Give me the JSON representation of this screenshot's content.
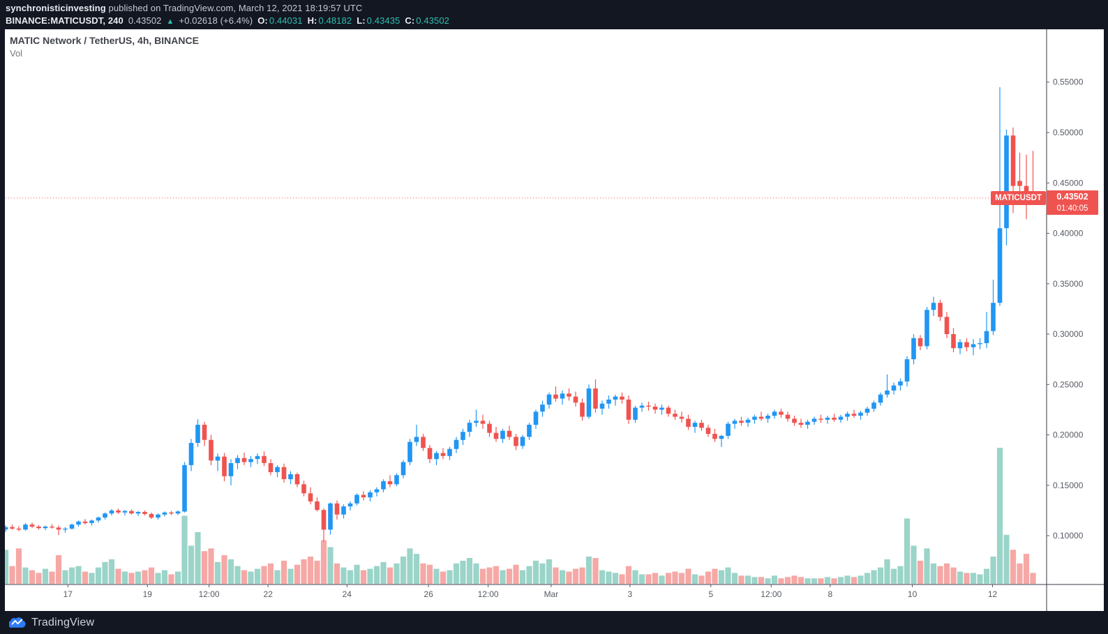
{
  "header": {
    "line1": {
      "username": "synchronisticinvesting",
      "rest": "published on TradingView.com, March 12, 2021 18:19:57 UTC"
    },
    "line2": {
      "symbol": "BINANCE:MATICUSDT, 240",
      "last_price": "0.43502",
      "direction_arrow": "▲",
      "change": "+0.02618 (+6.4%)",
      "open_label": "O:",
      "open": "0.44031",
      "high_label": "H:",
      "high": "0.48182",
      "low_label": "L:",
      "low": "0.43435",
      "close_label": "C:",
      "close": "0.43502"
    }
  },
  "legend": {
    "title": "MATIC Network / TetherUS, 4h, BINANCE",
    "indicator": "Vol"
  },
  "price_line": {
    "symbol_label": "MATICUSDT",
    "price": "0.43502",
    "countdown": "01:40:05"
  },
  "footer": {
    "brand": "TradingView"
  },
  "colors": {
    "background_dark": "#131722",
    "chart_background": "#ffffff",
    "candle_up": "#2196f3",
    "candle_down": "#ef5350",
    "volume_up": "#9bd4c9",
    "volume_down": "#f5a8a5",
    "price_line_red": "#ef5350",
    "badge_red": "#ef5350",
    "teal_text": "#2ebdb0",
    "axis_text": "#565a62",
    "axis_line": "#363a45",
    "logo_blue": "#2f7bf5"
  },
  "chart_data": {
    "type": "candlestick",
    "title": "MATIC Network / TetherUS, 4h, BINANCE",
    "symbol": "BINANCE:MATICUSDT",
    "interval": "4h",
    "exchange": "BINANCE",
    "legend": [
      "Vol"
    ],
    "grid": false,
    "x_axis_note": "Feb 16 - Mar 12, 2021, 4-hour bars",
    "ylim_visible": [
      0.052,
      0.602
    ],
    "current_price": 0.43502,
    "current_bar_ohlc": {
      "open": 0.44031,
      "high": 0.48182,
      "low": 0.43435,
      "close": 0.43502
    },
    "price_axis_ticks": [
      {
        "value": 0.55,
        "label": "0.55000"
      },
      {
        "value": 0.5,
        "label": "0.50000"
      },
      {
        "value": 0.45,
        "label": "0.45000"
      },
      {
        "value": 0.4,
        "label": "0.40000"
      },
      {
        "value": 0.35,
        "label": "0.35000"
      },
      {
        "value": 0.3,
        "label": "0.30000"
      },
      {
        "value": 0.25,
        "label": "0.25000"
      },
      {
        "value": 0.2,
        "label": "0.20000"
      },
      {
        "value": 0.15,
        "label": "0.15000"
      },
      {
        "value": 0.1,
        "label": "0.10000"
      }
    ],
    "time_axis_ticks": [
      {
        "i": 9.4,
        "label": "17"
      },
      {
        "i": 21.4,
        "label": "19"
      },
      {
        "i": 30.7,
        "label": "12:00"
      },
      {
        "i": 39.6,
        "label": "22"
      },
      {
        "i": 51.5,
        "label": "24"
      },
      {
        "i": 63.8,
        "label": "26"
      },
      {
        "i": 72.8,
        "label": "12:00"
      },
      {
        "i": 82.3,
        "label": "Mar"
      },
      {
        "i": 94.2,
        "label": "3"
      },
      {
        "i": 106.4,
        "label": "5"
      },
      {
        "i": 115.5,
        "label": "12:00"
      },
      {
        "i": 124.4,
        "label": "8"
      },
      {
        "i": 136.8,
        "label": "10"
      },
      {
        "i": 148.9,
        "label": "12"
      }
    ],
    "candle_format": [
      "open",
      "high",
      "low",
      "close",
      "volume_rel"
    ],
    "candles": [
      [
        0.106,
        0.11,
        0.1035,
        0.1085,
        0.25
      ],
      [
        0.1085,
        0.111,
        0.106,
        0.107,
        0.13
      ],
      [
        0.107,
        0.1095,
        0.1045,
        0.106,
        0.26
      ],
      [
        0.106,
        0.1125,
        0.105,
        0.111,
        0.12
      ],
      [
        0.111,
        0.113,
        0.1075,
        0.109,
        0.1
      ],
      [
        0.109,
        0.1105,
        0.106,
        0.1075,
        0.08
      ],
      [
        0.1075,
        0.11,
        0.1055,
        0.109,
        0.11
      ],
      [
        0.109,
        0.1115,
        0.107,
        0.108,
        0.09
      ],
      [
        0.108,
        0.11,
        0.1005,
        0.106,
        0.21
      ],
      [
        0.106,
        0.1085,
        0.103,
        0.107,
        0.1
      ],
      [
        0.107,
        0.112,
        0.106,
        0.111,
        0.12
      ],
      [
        0.111,
        0.115,
        0.109,
        0.114,
        0.13
      ],
      [
        0.114,
        0.1165,
        0.111,
        0.1125,
        0.09
      ],
      [
        0.1125,
        0.116,
        0.11,
        0.115,
        0.08
      ],
      [
        0.115,
        0.119,
        0.113,
        0.118,
        0.12
      ],
      [
        0.118,
        0.123,
        0.116,
        0.122,
        0.16
      ],
      [
        0.122,
        0.1265,
        0.12,
        0.125,
        0.18
      ],
      [
        0.125,
        0.127,
        0.1215,
        0.123,
        0.11
      ],
      [
        0.123,
        0.1255,
        0.12,
        0.1245,
        0.09
      ],
      [
        0.1245,
        0.126,
        0.121,
        0.122,
        0.08
      ],
      [
        0.122,
        0.1245,
        0.1195,
        0.1235,
        0.09
      ],
      [
        0.1235,
        0.125,
        0.12,
        0.1215,
        0.1
      ],
      [
        0.1215,
        0.123,
        0.1165,
        0.118,
        0.12
      ],
      [
        0.118,
        0.122,
        0.116,
        0.121,
        0.08
      ],
      [
        0.121,
        0.124,
        0.119,
        0.123,
        0.1
      ],
      [
        0.123,
        0.1245,
        0.1205,
        0.122,
        0.07
      ],
      [
        0.122,
        0.125,
        0.1205,
        0.124,
        0.09
      ],
      [
        0.124,
        0.173,
        0.123,
        0.17,
        0.5
      ],
      [
        0.17,
        0.196,
        0.164,
        0.192,
        0.28
      ],
      [
        0.192,
        0.2155,
        0.188,
        0.21,
        0.38
      ],
      [
        0.21,
        0.213,
        0.189,
        0.195,
        0.24
      ],
      [
        0.195,
        0.2,
        0.17,
        0.1745,
        0.26
      ],
      [
        0.1745,
        0.1815,
        0.164,
        0.1785,
        0.16
      ],
      [
        0.1785,
        0.182,
        0.154,
        0.159,
        0.21
      ],
      [
        0.159,
        0.176,
        0.15,
        0.172,
        0.18
      ],
      [
        0.172,
        0.18,
        0.166,
        0.177,
        0.13
      ],
      [
        0.177,
        0.1825,
        0.17,
        0.173,
        0.1
      ],
      [
        0.173,
        0.179,
        0.168,
        0.176,
        0.09
      ],
      [
        0.176,
        0.1815,
        0.171,
        0.179,
        0.11
      ],
      [
        0.179,
        0.1835,
        0.169,
        0.172,
        0.13
      ],
      [
        0.172,
        0.176,
        0.16,
        0.163,
        0.15
      ],
      [
        0.163,
        0.17,
        0.158,
        0.168,
        0.1
      ],
      [
        0.168,
        0.1715,
        0.1525,
        0.156,
        0.17
      ],
      [
        0.156,
        0.164,
        0.151,
        0.161,
        0.11
      ],
      [
        0.161,
        0.1625,
        0.148,
        0.151,
        0.14
      ],
      [
        0.151,
        0.1545,
        0.139,
        0.142,
        0.18
      ],
      [
        0.142,
        0.148,
        0.131,
        0.134,
        0.2
      ],
      [
        0.134,
        0.138,
        0.124,
        0.1255,
        0.17
      ],
      [
        0.1255,
        0.127,
        0.094,
        0.106,
        0.32
      ],
      [
        0.106,
        0.133,
        0.101,
        0.132,
        0.27
      ],
      [
        0.132,
        0.135,
        0.116,
        0.121,
        0.15
      ],
      [
        0.121,
        0.131,
        0.117,
        0.129,
        0.12
      ],
      [
        0.129,
        0.134,
        0.125,
        0.132,
        0.1
      ],
      [
        0.132,
        0.142,
        0.13,
        0.1405,
        0.14
      ],
      [
        0.1405,
        0.144,
        0.135,
        0.138,
        0.1
      ],
      [
        0.138,
        0.145,
        0.134,
        0.143,
        0.11
      ],
      [
        0.143,
        0.148,
        0.139,
        0.146,
        0.13
      ],
      [
        0.146,
        0.156,
        0.143,
        0.154,
        0.16
      ],
      [
        0.154,
        0.16,
        0.148,
        0.151,
        0.12
      ],
      [
        0.151,
        0.162,
        0.149,
        0.16,
        0.15
      ],
      [
        0.16,
        0.175,
        0.157,
        0.173,
        0.2
      ],
      [
        0.173,
        0.196,
        0.17,
        0.193,
        0.26
      ],
      [
        0.193,
        0.21,
        0.189,
        0.198,
        0.22
      ],
      [
        0.198,
        0.201,
        0.184,
        0.187,
        0.15
      ],
      [
        0.187,
        0.19,
        0.172,
        0.176,
        0.14
      ],
      [
        0.176,
        0.184,
        0.17,
        0.182,
        0.11
      ],
      [
        0.182,
        0.187,
        0.176,
        0.179,
        0.09
      ],
      [
        0.179,
        0.188,
        0.175,
        0.186,
        0.1
      ],
      [
        0.186,
        0.198,
        0.182,
        0.195,
        0.15
      ],
      [
        0.195,
        0.206,
        0.19,
        0.203,
        0.17
      ],
      [
        0.203,
        0.215,
        0.198,
        0.212,
        0.19
      ],
      [
        0.212,
        0.225,
        0.208,
        0.214,
        0.15
      ],
      [
        0.214,
        0.22,
        0.206,
        0.211,
        0.11
      ],
      [
        0.211,
        0.214,
        0.198,
        0.202,
        0.12
      ],
      [
        0.202,
        0.208,
        0.193,
        0.196,
        0.13
      ],
      [
        0.196,
        0.206,
        0.192,
        0.204,
        0.1
      ],
      [
        0.204,
        0.209,
        0.195,
        0.198,
        0.11
      ],
      [
        0.198,
        0.201,
        0.185,
        0.189,
        0.14
      ],
      [
        0.189,
        0.2,
        0.186,
        0.198,
        0.1
      ],
      [
        0.198,
        0.212,
        0.195,
        0.21,
        0.13
      ],
      [
        0.21,
        0.225,
        0.206,
        0.223,
        0.17
      ],
      [
        0.223,
        0.234,
        0.218,
        0.23,
        0.15
      ],
      [
        0.23,
        0.242,
        0.226,
        0.24,
        0.18
      ],
      [
        0.24,
        0.248,
        0.233,
        0.236,
        0.12
      ],
      [
        0.236,
        0.244,
        0.23,
        0.241,
        0.1
      ],
      [
        0.241,
        0.246,
        0.234,
        0.238,
        0.09
      ],
      [
        0.238,
        0.243,
        0.228,
        0.232,
        0.11
      ],
      [
        0.232,
        0.236,
        0.214,
        0.218,
        0.12
      ],
      [
        0.218,
        0.25,
        0.216,
        0.246,
        0.2
      ],
      [
        0.246,
        0.255,
        0.222,
        0.226,
        0.19
      ],
      [
        0.226,
        0.234,
        0.22,
        0.231,
        0.1
      ],
      [
        0.231,
        0.239,
        0.226,
        0.235,
        0.09
      ],
      [
        0.235,
        0.24,
        0.229,
        0.238,
        0.08
      ],
      [
        0.238,
        0.242,
        0.231,
        0.235,
        0.07
      ],
      [
        0.235,
        0.239,
        0.211,
        0.215,
        0.13
      ],
      [
        0.215,
        0.229,
        0.212,
        0.227,
        0.1
      ],
      [
        0.227,
        0.232,
        0.223,
        0.229,
        0.07
      ],
      [
        0.229,
        0.233,
        0.224,
        0.228,
        0.07
      ],
      [
        0.228,
        0.231,
        0.221,
        0.225,
        0.08
      ],
      [
        0.225,
        0.23,
        0.22,
        0.227,
        0.06
      ],
      [
        0.227,
        0.229,
        0.218,
        0.221,
        0.08
      ],
      [
        0.221,
        0.225,
        0.215,
        0.218,
        0.09
      ],
      [
        0.218,
        0.223,
        0.212,
        0.216,
        0.08
      ],
      [
        0.216,
        0.22,
        0.205,
        0.208,
        0.11
      ],
      [
        0.208,
        0.214,
        0.202,
        0.212,
        0.07
      ],
      [
        0.212,
        0.215,
        0.204,
        0.207,
        0.06
      ],
      [
        0.207,
        0.21,
        0.198,
        0.201,
        0.09
      ],
      [
        0.201,
        0.206,
        0.193,
        0.196,
        0.11
      ],
      [
        0.196,
        0.2,
        0.188,
        0.199,
        0.1
      ],
      [
        0.199,
        0.213,
        0.196,
        0.211,
        0.12
      ],
      [
        0.211,
        0.216,
        0.206,
        0.214,
        0.08
      ],
      [
        0.214,
        0.218,
        0.209,
        0.212,
        0.06
      ],
      [
        0.212,
        0.217,
        0.208,
        0.215,
        0.06
      ],
      [
        0.215,
        0.22,
        0.211,
        0.218,
        0.05
      ],
      [
        0.218,
        0.223,
        0.214,
        0.216,
        0.05
      ],
      [
        0.216,
        0.221,
        0.212,
        0.219,
        0.04
      ],
      [
        0.219,
        0.225,
        0.216,
        0.223,
        0.06
      ],
      [
        0.223,
        0.226,
        0.217,
        0.22,
        0.04
      ],
      [
        0.22,
        0.223,
        0.213,
        0.216,
        0.05
      ],
      [
        0.216,
        0.219,
        0.209,
        0.212,
        0.06
      ],
      [
        0.212,
        0.216,
        0.207,
        0.21,
        0.05
      ],
      [
        0.21,
        0.215,
        0.206,
        0.213,
        0.04
      ],
      [
        0.213,
        0.218,
        0.21,
        0.216,
        0.04
      ],
      [
        0.216,
        0.22,
        0.212,
        0.215,
        0.04
      ],
      [
        0.215,
        0.219,
        0.211,
        0.217,
        0.05
      ],
      [
        0.217,
        0.221,
        0.213,
        0.215,
        0.04
      ],
      [
        0.215,
        0.22,
        0.212,
        0.218,
        0.05
      ],
      [
        0.218,
        0.223,
        0.214,
        0.221,
        0.06
      ],
      [
        0.221,
        0.225,
        0.217,
        0.219,
        0.05
      ],
      [
        0.219,
        0.224,
        0.215,
        0.222,
        0.06
      ],
      [
        0.222,
        0.228,
        0.219,
        0.226,
        0.08
      ],
      [
        0.226,
        0.234,
        0.223,
        0.232,
        0.1
      ],
      [
        0.232,
        0.242,
        0.229,
        0.24,
        0.12
      ],
      [
        0.24,
        0.26,
        0.237,
        0.244,
        0.18
      ],
      [
        0.244,
        0.252,
        0.24,
        0.249,
        0.11
      ],
      [
        0.249,
        0.256,
        0.244,
        0.253,
        0.13
      ],
      [
        0.253,
        0.278,
        0.248,
        0.275,
        0.48
      ],
      [
        0.275,
        0.3,
        0.27,
        0.296,
        0.28
      ],
      [
        0.296,
        0.299,
        0.284,
        0.288,
        0.17
      ],
      [
        0.288,
        0.327,
        0.285,
        0.324,
        0.26
      ],
      [
        0.324,
        0.337,
        0.318,
        0.331,
        0.15
      ],
      [
        0.331,
        0.334,
        0.313,
        0.317,
        0.13
      ],
      [
        0.317,
        0.322,
        0.296,
        0.3,
        0.15
      ],
      [
        0.3,
        0.306,
        0.282,
        0.286,
        0.12
      ],
      [
        0.286,
        0.295,
        0.28,
        0.292,
        0.09
      ],
      [
        0.292,
        0.296,
        0.283,
        0.287,
        0.08
      ],
      [
        0.287,
        0.295,
        0.279,
        0.29,
        0.08
      ],
      [
        0.29,
        0.296,
        0.285,
        0.291,
        0.07
      ],
      [
        0.291,
        0.322,
        0.286,
        0.303,
        0.11
      ],
      [
        0.303,
        0.354,
        0.299,
        0.331,
        0.2
      ],
      [
        0.331,
        0.545,
        0.328,
        0.405,
        1.0
      ],
      [
        0.405,
        0.503,
        0.388,
        0.497,
        0.36
      ],
      [
        0.497,
        0.505,
        0.42,
        0.447,
        0.25
      ],
      [
        0.452,
        0.48,
        0.44,
        0.447,
        0.15
      ],
      [
        0.447,
        0.478,
        0.414,
        0.44,
        0.22
      ],
      [
        0.44031,
        0.48182,
        0.43435,
        0.43502,
        0.08
      ]
    ]
  }
}
